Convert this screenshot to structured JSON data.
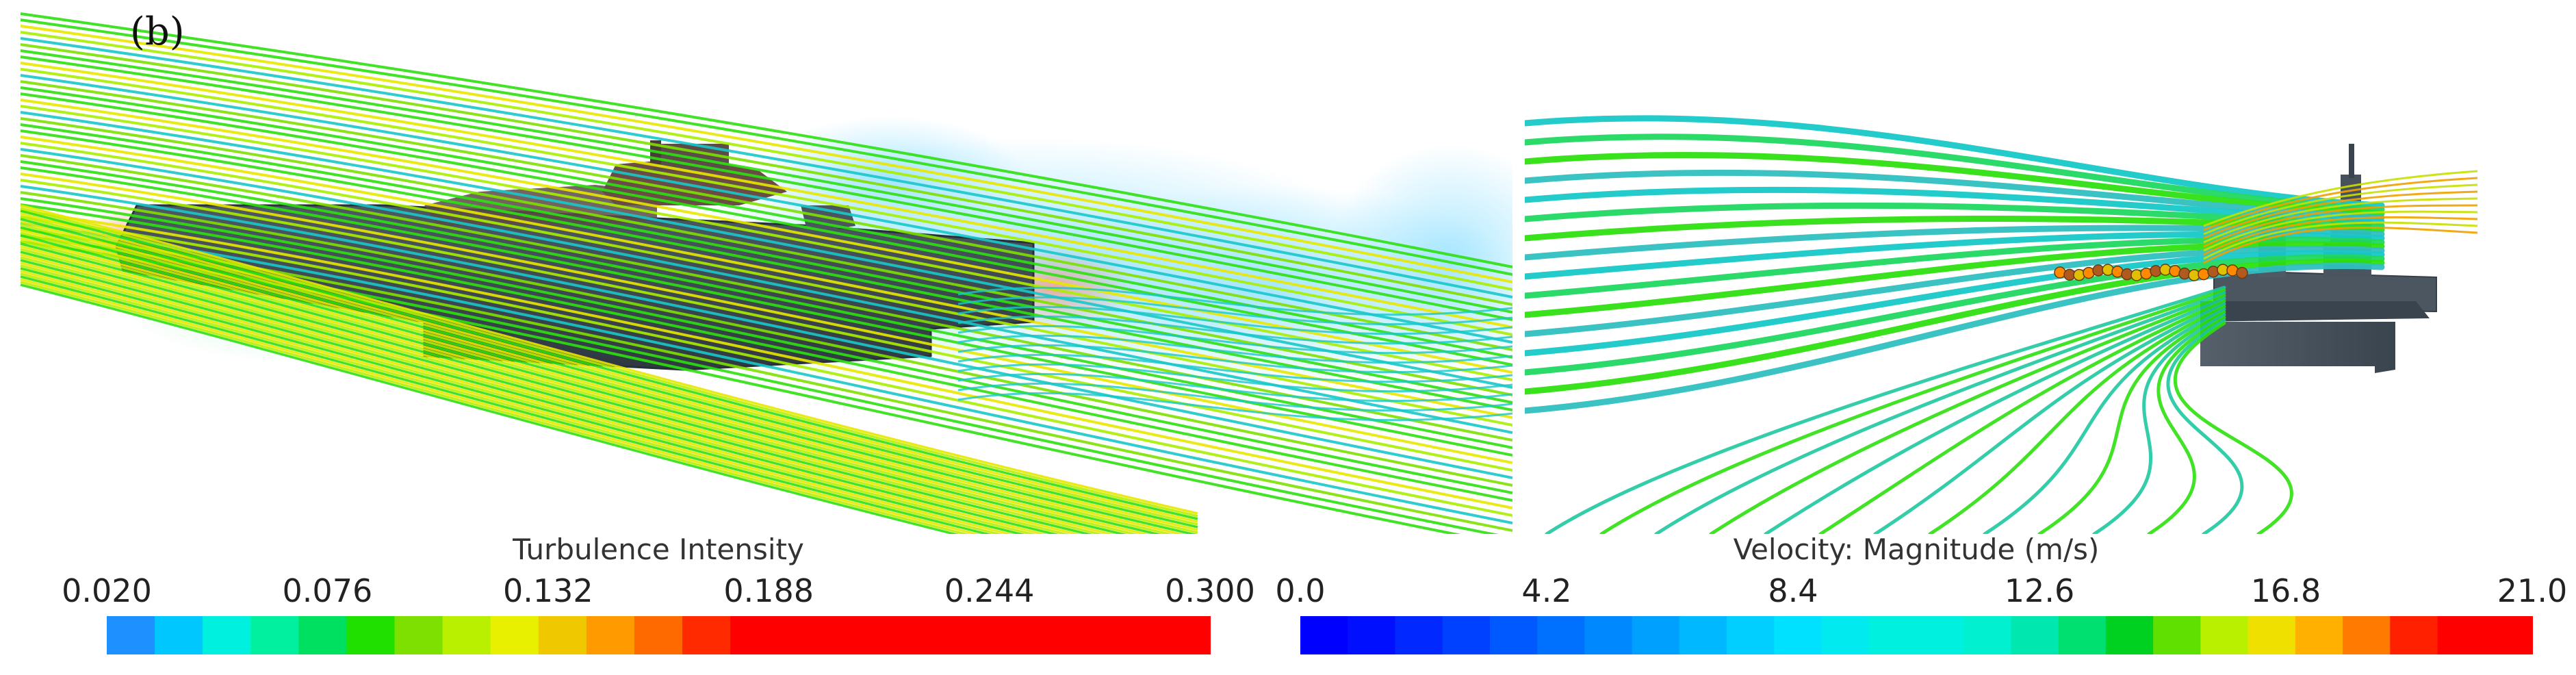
{
  "panel_label": "(b)",
  "left_colorbar": {
    "title": "Turbulence Intensity",
    "ticks": [
      "0.020",
      "0.076",
      "0.132",
      "0.188",
      "0.244",
      "0.300"
    ],
    "colors": [
      "#1e90ff",
      "#00c8ff",
      "#00f0e0",
      "#00f0a0",
      "#00e060",
      "#20e000",
      "#7ee000",
      "#b8f000",
      "#e8f000",
      "#f0c800",
      "#ff9a00",
      "#ff6a00",
      "#ff2a00",
      "#ff0000",
      "#ff0000",
      "#ff0000",
      "#ff0000",
      "#ff0000",
      "#ff0000",
      "#ff0000",
      "#ff0000",
      "#ff0000",
      "#ff0000"
    ]
  },
  "right_colorbar": {
    "title": "Velocity: Magnitude (m/s)",
    "ticks": [
      "0.0",
      "4.2",
      "8.4",
      "12.6",
      "16.8",
      "21.0"
    ],
    "colors": [
      "#0000ff",
      "#0010ff",
      "#0028ff",
      "#0040ff",
      "#0058ff",
      "#0070ff",
      "#0088ff",
      "#00a0ff",
      "#00b8ff",
      "#00cfff",
      "#00e0ff",
      "#00eaf0",
      "#00f0e0",
      "#00f0e0",
      "#00f0d0",
      "#00e8b0",
      "#00e070",
      "#00d020",
      "#60e000",
      "#b8f000",
      "#f0e000",
      "#ffb000",
      "#ff7a00",
      "#ff2000",
      "#ff0000",
      "#ff0000"
    ]
  },
  "colors": {
    "ship_hull": "#3c4650",
    "ship_deck": "#4a5560",
    "streamline_green": "#2ee010",
    "streamline_yellow": "#e8e800",
    "streamline_cyan": "#18c8c8",
    "wake_cloud": "#7fd8f5"
  }
}
